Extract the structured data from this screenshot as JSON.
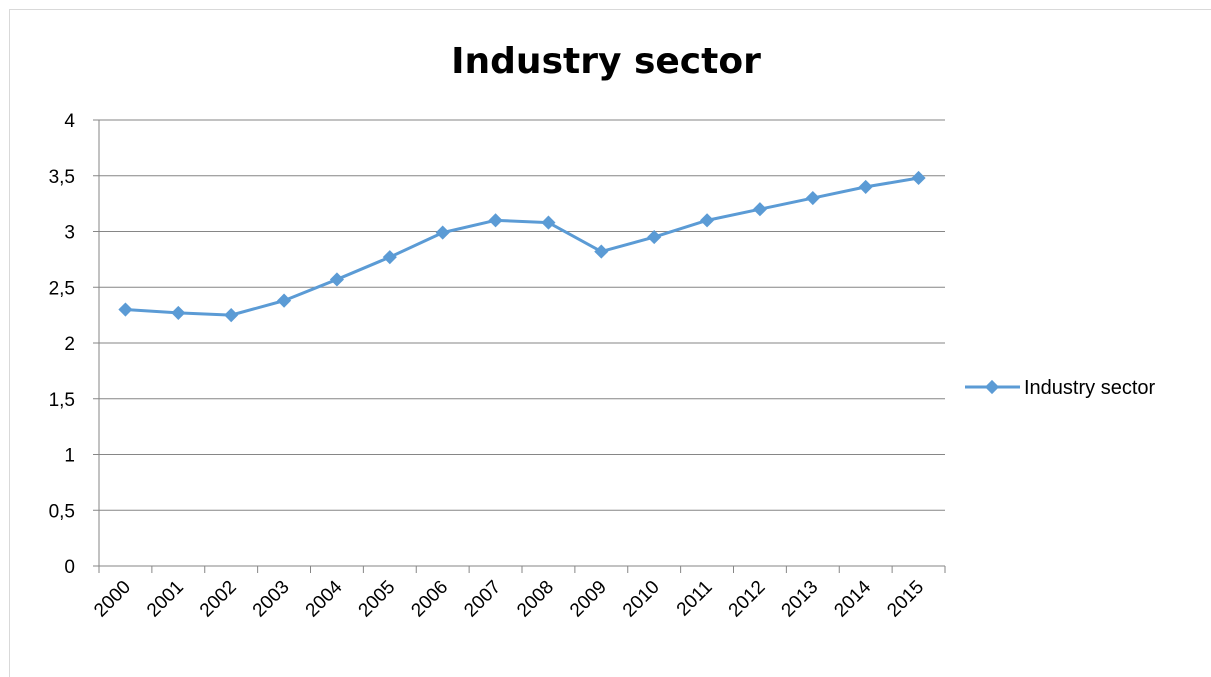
{
  "chart_data": {
    "type": "line",
    "title": "Industry sector",
    "xlabel": "",
    "ylabel": "",
    "categories": [
      "2000",
      "2001",
      "2002",
      "2003",
      "2004",
      "2005",
      "2006",
      "2007",
      "2008",
      "2009",
      "2010",
      "2011",
      "2012",
      "2013",
      "2014",
      "2015"
    ],
    "series": [
      {
        "name": "Industry sector",
        "color": "#5b9bd5",
        "values": [
          2.3,
          2.27,
          2.25,
          2.38,
          2.57,
          2.77,
          2.99,
          3.1,
          3.08,
          2.82,
          2.95,
          3.1,
          3.2,
          3.3,
          3.4,
          3.48
        ]
      }
    ],
    "ylim": [
      0,
      4
    ],
    "yticks": [
      "0",
      "0,5",
      "1",
      "1,5",
      "2",
      "2,5",
      "3",
      "3,5",
      "4"
    ],
    "grid": true,
    "legend": "right"
  }
}
